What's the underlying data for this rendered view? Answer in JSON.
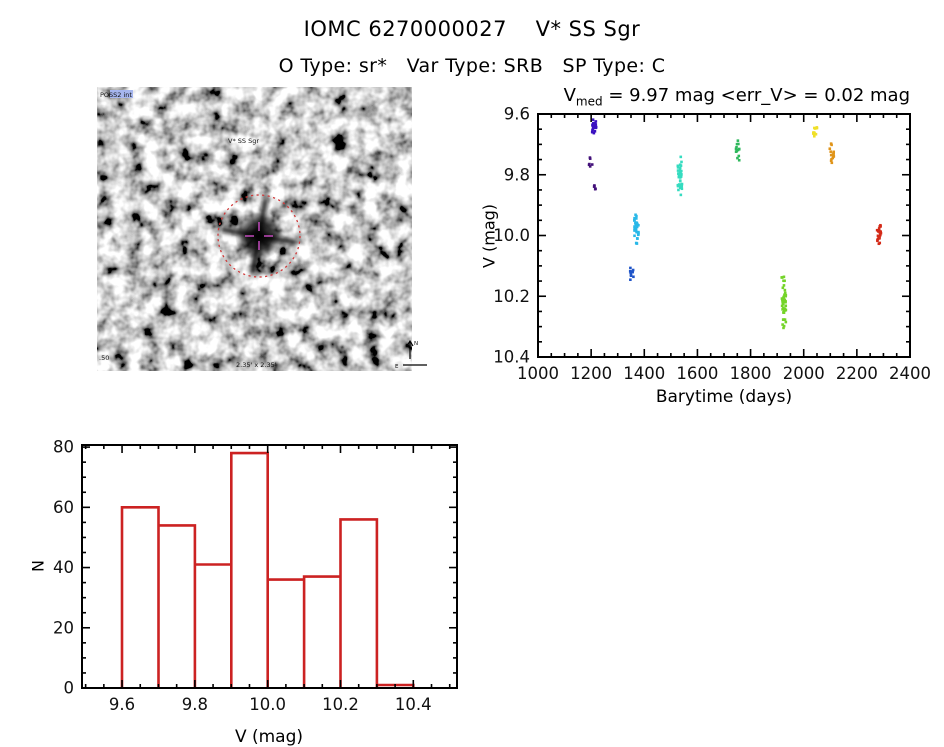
{
  "header": {
    "title": "IOMC 6270000027    V* SS Sgr",
    "subtitle": "O Type: sr*   Var Type: SRB   SP Type: C"
  },
  "finding_chart": {
    "survey_label": "POSS2 int",
    "target_label": "V* SS Sgr",
    "scale_label": "2.35' x 2.35'",
    "corner_label": ".50",
    "compass_n": "N",
    "compass_e": "E",
    "circle_color": "#cf3b3b",
    "crosshair_color": "#cf4fc9"
  },
  "light_curve_title": {
    "prefix": "V",
    "subscript": "med",
    "rest": " = 9.97 mag <err_V> = 0.02 mag"
  },
  "chart_data": [
    {
      "type": "scatter",
      "title": "V_med = 9.97 mag <err_V> = 0.02 mag",
      "xlabel": "Barytime (days)",
      "ylabel": "V (mag)",
      "xlim": [
        1000,
        2400
      ],
      "ylim": [
        9.6,
        10.4
      ],
      "y_inverted": true,
      "xticks": [
        1000,
        1200,
        1400,
        1600,
        1800,
        2000,
        2200,
        2400
      ],
      "yticks": [
        9.6,
        9.8,
        10.0,
        10.2,
        10.4
      ],
      "x_minor": 50,
      "y_minor": 0.05,
      "grid": false,
      "legend": "none",
      "clusters": [
        {
          "t": 1198,
          "v_min": 9.74,
          "v_max": 9.79,
          "n": 6,
          "color": "#43117a",
          "seed": 1
        },
        {
          "t": 1212,
          "v_min": 9.61,
          "v_max": 9.67,
          "n": 26,
          "color": "#3a10c0",
          "seed": 2
        },
        {
          "t": 1210,
          "v_min": 9.83,
          "v_max": 9.86,
          "n": 5,
          "color": "#43117a",
          "seed": 3
        },
        {
          "t": 1354,
          "v_min": 10.1,
          "v_max": 10.15,
          "n": 10,
          "color": "#1f54c8",
          "seed": 4
        },
        {
          "t": 1370,
          "v_min": 9.91,
          "v_max": 10.04,
          "n": 32,
          "color": "#29b8e8",
          "seed": 5
        },
        {
          "t": 1534,
          "v_min": 9.73,
          "v_max": 9.88,
          "n": 42,
          "color": "#35dcc0",
          "seed": 6
        },
        {
          "t": 1750,
          "v_min": 9.67,
          "v_max": 9.76,
          "n": 13,
          "color": "#2eb85c",
          "seed": 7
        },
        {
          "t": 1925,
          "v_min": 10.1,
          "v_max": 10.33,
          "n": 48,
          "color": "#74d428",
          "seed": 8
        },
        {
          "t": 2042,
          "v_min": 9.63,
          "v_max": 9.68,
          "n": 12,
          "color": "#f0e028",
          "seed": 9
        },
        {
          "t": 2106,
          "v_min": 9.68,
          "v_max": 9.78,
          "n": 16,
          "color": "#e09418",
          "seed": 10
        },
        {
          "t": 2283,
          "v_min": 9.95,
          "v_max": 10.04,
          "n": 26,
          "color": "#d42a18",
          "seed": 11
        }
      ]
    },
    {
      "type": "histogram",
      "title": "",
      "xlabel": "V (mag)",
      "ylabel": "N",
      "xlim": [
        9.49,
        10.52
      ],
      "ylim": [
        0,
        80.7
      ],
      "y_inverted": false,
      "xticks": [
        9.6,
        9.8,
        10.0,
        10.2,
        10.4
      ],
      "yticks": [
        0,
        20,
        40,
        60,
        80
      ],
      "x_minor": 0.05,
      "y_minor": 5,
      "grid": false,
      "legend": "none",
      "bin_edges": [
        9.6,
        9.7,
        9.8,
        9.9,
        10.0,
        10.1,
        10.2,
        10.3,
        10.4
      ],
      "values": [
        60,
        54,
        41,
        78,
        36,
        37,
        56,
        1
      ],
      "bar_color": "#cc2222"
    }
  ]
}
